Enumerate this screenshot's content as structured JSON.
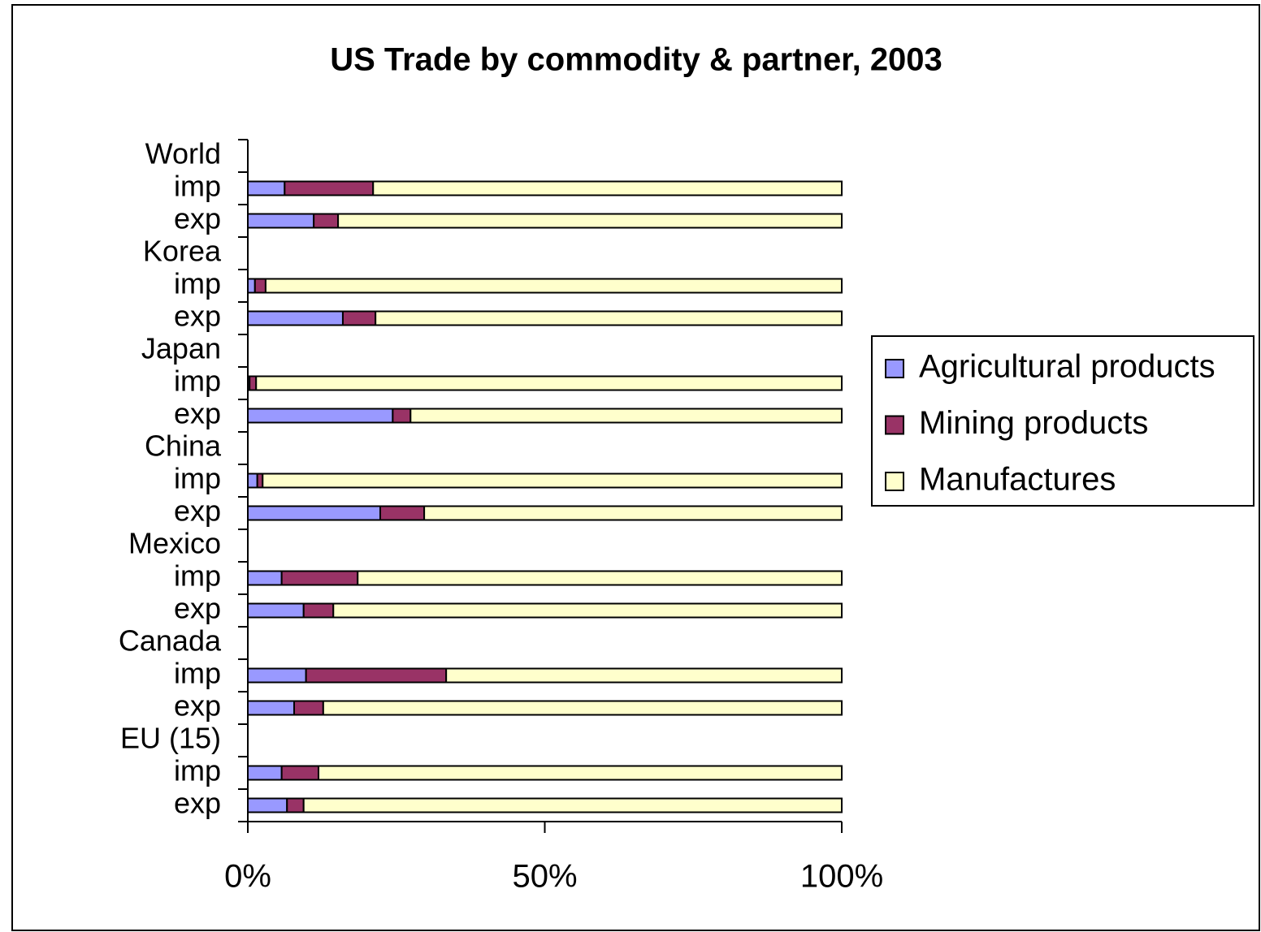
{
  "chart_data": {
    "type": "bar",
    "orientation": "horizontal",
    "stacked": true,
    "title": "US Trade by commodity & partner, 2003",
    "categories": [
      "World",
      "imp",
      "exp",
      "Korea",
      "imp",
      "exp",
      "Japan",
      "imp",
      "exp",
      "China",
      "imp",
      "exp",
      "Mexico",
      "imp",
      "exp",
      "Canada",
      "imp",
      "exp",
      "EU (15)",
      "imp",
      "exp"
    ],
    "series": [
      {
        "name": "Agricultural products",
        "color": "#9999ff",
        "values": [
          null,
          6.2,
          11.1,
          null,
          1.2,
          16.0,
          null,
          0.3,
          24.4,
          null,
          1.6,
          22.3,
          null,
          5.7,
          9.4,
          null,
          9.8,
          7.8,
          null,
          5.7,
          6.6
        ]
      },
      {
        "name": "Mining products",
        "color": "#993366",
        "values": [
          null,
          14.9,
          4.1,
          null,
          1.8,
          5.5,
          null,
          1.1,
          3.0,
          null,
          0.9,
          7.4,
          null,
          12.8,
          5.0,
          null,
          23.6,
          4.9,
          null,
          6.2,
          2.8
        ]
      },
      {
        "name": "Manufactures",
        "color": "#ffffcc",
        "values": [
          null,
          78.9,
          84.8,
          null,
          97.0,
          78.5,
          null,
          98.6,
          72.6,
          null,
          97.5,
          70.3,
          null,
          81.5,
          85.6,
          null,
          66.6,
          87.3,
          null,
          88.1,
          90.6
        ]
      }
    ],
    "xlim": [
      0,
      100
    ],
    "xticks": [
      {
        "value": 0,
        "label": "0%"
      },
      {
        "value": 50,
        "label": "50%"
      },
      {
        "value": 100,
        "label": "100%"
      }
    ],
    "legend": "right"
  }
}
